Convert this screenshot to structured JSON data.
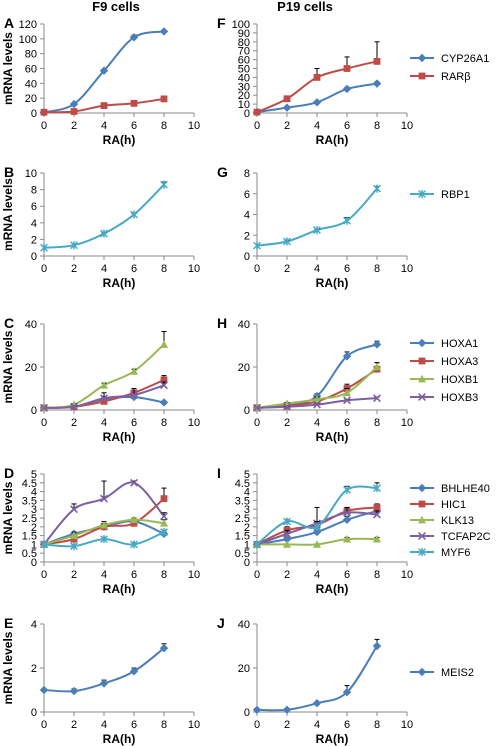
{
  "column_titles": [
    "F9 cells",
    "P19 cells"
  ],
  "colors": {
    "blue": "#4a7ebb",
    "red": "#be4b48",
    "green": "#98b954",
    "purple": "#7d60a0",
    "cyan": "#46aac5"
  },
  "legends": [
    {
      "row": 0,
      "entries": [
        {
          "label": "CYP26A1",
          "color": "#4a7ebb",
          "marker": "diamond"
        },
        {
          "label": "RARβ",
          "color": "#be4b48",
          "marker": "square"
        }
      ]
    },
    {
      "row": 1,
      "entries": [
        {
          "label": "RBP1",
          "color": "#46aac5",
          "marker": "star"
        }
      ]
    },
    {
      "row": 2,
      "entries": [
        {
          "label": "HOXA1",
          "color": "#4a7ebb",
          "marker": "diamond"
        },
        {
          "label": "HOXA3",
          "color": "#be4b48",
          "marker": "square"
        },
        {
          "label": "HOXB1",
          "color": "#98b954",
          "marker": "triangle"
        },
        {
          "label": "HOXB3",
          "color": "#7d60a0",
          "marker": "x"
        }
      ]
    },
    {
      "row": 3,
      "entries": [
        {
          "label": "BHLHE40",
          "color": "#4a7ebb",
          "marker": "diamond"
        },
        {
          "label": "HIC1",
          "color": "#be4b48",
          "marker": "square"
        },
        {
          "label": "KLK13",
          "color": "#98b954",
          "marker": "triangle"
        },
        {
          "label": "TCFAP2C",
          "color": "#7d60a0",
          "marker": "x"
        },
        {
          "label": "MYF6",
          "color": "#46aac5",
          "marker": "star"
        }
      ]
    },
    {
      "row": 4,
      "entries": [
        {
          "label": "MEIS2",
          "color": "#4a7ebb",
          "marker": "diamond"
        }
      ]
    }
  ],
  "chart_data": [
    {
      "panel": "A",
      "type": "line",
      "xlabel": "RA(h)",
      "ylabel": "mRNA levels",
      "xlim": [
        0,
        10
      ],
      "xticks": [
        0,
        2,
        4,
        6,
        8,
        10
      ],
      "ylim": [
        0,
        120
      ],
      "yticks": [
        0,
        20,
        40,
        60,
        80,
        100,
        120
      ],
      "series": [
        {
          "name": "CYP26A1",
          "color": "#4a7ebb",
          "marker": "diamond",
          "x": [
            0,
            2,
            4,
            6,
            8
          ],
          "y": [
            1,
            12,
            57,
            102,
            110
          ],
          "err": [
            0,
            1,
            1,
            3,
            1
          ]
        },
        {
          "name": "RARβ",
          "color": "#be4b48",
          "marker": "square",
          "x": [
            0,
            2,
            4,
            6,
            8
          ],
          "y": [
            1,
            2,
            10,
            13,
            19
          ],
          "err": [
            0,
            0,
            1,
            2,
            3
          ]
        }
      ]
    },
    {
      "panel": "F",
      "type": "line",
      "xlabel": "RA(h)",
      "ylabel": "",
      "xlim": [
        0,
        10
      ],
      "xticks": [
        0,
        2,
        4,
        6,
        8,
        10
      ],
      "ylim": [
        0,
        100
      ],
      "yticks": [
        0,
        10,
        20,
        30,
        40,
        50,
        60,
        70,
        80,
        90,
        100
      ],
      "series": [
        {
          "name": "CYP26A1",
          "color": "#4a7ebb",
          "marker": "diamond",
          "x": [
            0,
            2,
            4,
            6,
            8
          ],
          "y": [
            1,
            6,
            12,
            27,
            33
          ],
          "err": [
            0,
            1,
            1,
            2,
            2
          ]
        },
        {
          "name": "RARβ",
          "color": "#be4b48",
          "marker": "square",
          "x": [
            0,
            2,
            4,
            6,
            8
          ],
          "y": [
            1,
            16,
            40,
            50,
            58
          ],
          "err": [
            0,
            2,
            10,
            13,
            22
          ]
        }
      ]
    },
    {
      "panel": "B",
      "type": "line",
      "xlabel": "RA(h)",
      "ylabel": "mRNA levels",
      "xlim": [
        0,
        10
      ],
      "xticks": [
        0,
        2,
        4,
        6,
        8,
        10
      ],
      "ylim": [
        0,
        10
      ],
      "yticks": [
        0,
        2,
        4,
        6,
        8,
        10
      ],
      "series": [
        {
          "name": "RBP1",
          "color": "#46aac5",
          "marker": "star",
          "x": [
            0,
            2,
            4,
            6,
            8
          ],
          "y": [
            1,
            1.3,
            2.7,
            5,
            8.6
          ],
          "err": [
            0,
            0,
            0.1,
            0.1,
            0.3
          ]
        }
      ]
    },
    {
      "panel": "G",
      "type": "line",
      "xlabel": "RA(h)",
      "ylabel": "",
      "xlim": [
        0,
        10
      ],
      "xticks": [
        0,
        2,
        4,
        6,
        8,
        10
      ],
      "ylim": [
        0,
        8
      ],
      "yticks": [
        0,
        2,
        4,
        6,
        8
      ],
      "series": [
        {
          "name": "RBP1",
          "color": "#46aac5",
          "marker": "star",
          "x": [
            0,
            2,
            4,
            6,
            8
          ],
          "y": [
            1,
            1.4,
            2.5,
            3.4,
            6.5
          ],
          "err": [
            0,
            0.1,
            0.1,
            0.3,
            0.2
          ]
        }
      ]
    },
    {
      "panel": "C",
      "type": "line",
      "xlabel": "RA(h)",
      "ylabel": "mRNA levels",
      "xlim": [
        0,
        10
      ],
      "xticks": [
        0,
        2,
        4,
        6,
        8,
        10
      ],
      "ylim": [
        0,
        40
      ],
      "yticks": [
        0,
        20,
        40
      ],
      "series": [
        {
          "name": "HOXA1",
          "color": "#4a7ebb",
          "marker": "diamond",
          "x": [
            0,
            2,
            4,
            6,
            8
          ],
          "y": [
            1,
            1.5,
            5,
            6,
            3.5
          ],
          "err": [
            0,
            0.5,
            1,
            1,
            0.5
          ]
        },
        {
          "name": "HOXA3",
          "color": "#be4b48",
          "marker": "square",
          "x": [
            0,
            2,
            4,
            6,
            8
          ],
          "y": [
            1,
            1.5,
            4,
            8,
            14
          ],
          "err": [
            0,
            0.5,
            1,
            2,
            2
          ]
        },
        {
          "name": "HOXB1",
          "color": "#98b954",
          "marker": "triangle",
          "x": [
            0,
            2,
            4,
            6,
            8
          ],
          "y": [
            1,
            2.5,
            11.5,
            18,
            30.5
          ],
          "err": [
            0,
            0.5,
            1,
            1,
            6
          ]
        },
        {
          "name": "HOXB3",
          "color": "#7d60a0",
          "marker": "x",
          "x": [
            0,
            2,
            4,
            6,
            8
          ],
          "y": [
            1,
            1.5,
            5.5,
            7,
            11.5
          ],
          "err": [
            0,
            0.5,
            2.5,
            3,
            1.5
          ]
        }
      ]
    },
    {
      "panel": "H",
      "type": "line",
      "xlabel": "RA(h)",
      "ylabel": "",
      "xlim": [
        0,
        10
      ],
      "xticks": [
        0,
        2,
        4,
        6,
        8,
        10
      ],
      "ylim": [
        0,
        40
      ],
      "yticks": [
        0,
        20,
        40
      ],
      "series": [
        {
          "name": "HOXA1",
          "color": "#4a7ebb",
          "marker": "diamond",
          "x": [
            0,
            2,
            4,
            6,
            8
          ],
          "y": [
            1,
            2,
            6.5,
            25,
            30.5
          ],
          "err": [
            0,
            0.5,
            1,
            2,
            1.5
          ]
        },
        {
          "name": "HOXA3",
          "color": "#be4b48",
          "marker": "square",
          "x": [
            0,
            2,
            4,
            6,
            8
          ],
          "y": [
            1,
            2,
            4,
            10,
            19
          ],
          "err": [
            0,
            0.5,
            0.5,
            2,
            3
          ]
        },
        {
          "name": "HOXB1",
          "color": "#98b954",
          "marker": "triangle",
          "x": [
            0,
            2,
            4,
            6,
            8
          ],
          "y": [
            1,
            3,
            5,
            8,
            20
          ],
          "err": [
            0,
            0.5,
            1,
            2,
            2
          ]
        },
        {
          "name": "HOXB3",
          "color": "#7d60a0",
          "marker": "x",
          "x": [
            0,
            2,
            4,
            6,
            8
          ],
          "y": [
            1,
            1.5,
            2.5,
            4.5,
            5.5
          ],
          "err": [
            0,
            0.3,
            0.5,
            0.5,
            0.5
          ]
        }
      ]
    },
    {
      "panel": "D",
      "type": "line",
      "xlabel": "RA(h)",
      "ylabel": "mRNA levels",
      "xlim": [
        0,
        10
      ],
      "xticks": [
        0,
        2,
        4,
        6,
        8,
        10
      ],
      "ylim": [
        0,
        5
      ],
      "yticks": [
        0,
        0.5,
        1,
        1.5,
        2,
        2.5,
        3,
        3.5,
        4,
        4.5,
        5
      ],
      "series": [
        {
          "name": "BHLHE40",
          "color": "#4a7ebb",
          "marker": "diamond",
          "x": [
            0,
            2,
            4,
            6,
            8
          ],
          "y": [
            1,
            1.6,
            2,
            2.3,
            1.6
          ],
          "err": [
            0,
            0.1,
            0.1,
            0.1,
            0.1
          ]
        },
        {
          "name": "HIC1",
          "color": "#be4b48",
          "marker": "square",
          "x": [
            0,
            2,
            4,
            6,
            8
          ],
          "y": [
            1,
            1.3,
            2,
            2.2,
            3.6
          ],
          "err": [
            0,
            0.1,
            0.2,
            0.3,
            0.6
          ]
        },
        {
          "name": "KLK13",
          "color": "#98b954",
          "marker": "triangle",
          "x": [
            0,
            2,
            4,
            6,
            8
          ],
          "y": [
            1,
            1.5,
            2.1,
            2.4,
            2.2
          ],
          "err": [
            0,
            0.2,
            0.2,
            0.1,
            0.2
          ]
        },
        {
          "name": "TCFAP2C",
          "color": "#7d60a0",
          "marker": "x",
          "x": [
            0,
            2,
            4,
            6,
            8
          ],
          "y": [
            1,
            3,
            3.6,
            4.5,
            2.6
          ],
          "err": [
            0,
            0.3,
            1,
            0.1,
            0.2
          ]
        },
        {
          "name": "MYF6",
          "color": "#46aac5",
          "marker": "star",
          "x": [
            0,
            2,
            4,
            6,
            8
          ],
          "y": [
            1,
            0.9,
            1.3,
            1,
            1.7
          ],
          "err": [
            0,
            0.1,
            0.1,
            0.1,
            0.1
          ]
        }
      ]
    },
    {
      "panel": "I",
      "type": "line",
      "xlabel": "RA(h)",
      "ylabel": "",
      "xlim": [
        0,
        10
      ],
      "xticks": [
        0,
        2,
        4,
        6,
        8,
        10
      ],
      "ylim": [
        0,
        5
      ],
      "yticks": [
        0,
        0.5,
        1,
        1.5,
        2,
        2.5,
        3,
        3.5,
        4,
        4.5,
        5
      ],
      "series": [
        {
          "name": "BHLHE40",
          "color": "#4a7ebb",
          "marker": "diamond",
          "x": [
            0,
            2,
            4,
            6,
            8
          ],
          "y": [
            1,
            1.3,
            1.7,
            2.4,
            2.9
          ],
          "err": [
            0,
            0.1,
            0.1,
            0.2,
            0.2
          ]
        },
        {
          "name": "HIC1",
          "color": "#be4b48",
          "marker": "square",
          "x": [
            0,
            2,
            4,
            6,
            8
          ],
          "y": [
            1,
            1.8,
            2.1,
            2.9,
            3.1
          ],
          "err": [
            0,
            0.2,
            0.2,
            0.2,
            0.2
          ]
        },
        {
          "name": "KLK13",
          "color": "#98b954",
          "marker": "triangle",
          "x": [
            0,
            2,
            4,
            6,
            8
          ],
          "y": [
            1,
            1,
            1,
            1.3,
            1.3
          ],
          "err": [
            0,
            0,
            0,
            0.1,
            0.1
          ]
        },
        {
          "name": "TCFAP2C",
          "color": "#7d60a0",
          "marker": "x",
          "x": [
            0,
            2,
            4,
            6,
            8
          ],
          "y": [
            1,
            1.6,
            2.2,
            2.8,
            2.7
          ],
          "err": [
            0,
            0.2,
            0.9,
            0.3,
            0.2
          ]
        },
        {
          "name": "MYF6",
          "color": "#46aac5",
          "marker": "star",
          "x": [
            0,
            2,
            4,
            6,
            8
          ],
          "y": [
            1,
            2.3,
            2,
            4.1,
            4.2
          ],
          "err": [
            0,
            0.1,
            0.3,
            0.2,
            0.3
          ]
        }
      ]
    },
    {
      "panel": "E",
      "type": "line",
      "xlabel": "RA(h)",
      "ylabel": "mRNA levels",
      "xlim": [
        0,
        10
      ],
      "xticks": [
        0,
        2,
        4,
        6,
        8,
        10
      ],
      "ylim": [
        0,
        4
      ],
      "yticks": [
        0,
        2,
        4
      ],
      "series": [
        {
          "name": "MEIS2",
          "color": "#4a7ebb",
          "marker": "diamond",
          "x": [
            0,
            2,
            4,
            6,
            8
          ],
          "y": [
            1,
            0.95,
            1.3,
            1.85,
            2.9
          ],
          "err": [
            0,
            0.1,
            0.15,
            0.15,
            0.2
          ]
        }
      ]
    },
    {
      "panel": "J",
      "type": "line",
      "xlabel": "RA(h)",
      "ylabel": "",
      "xlim": [
        0,
        10
      ],
      "xticks": [
        0,
        2,
        4,
        6,
        8,
        10
      ],
      "ylim": [
        0,
        40
      ],
      "yticks": [
        0,
        20,
        40
      ],
      "series": [
        {
          "name": "MEIS2",
          "color": "#4a7ebb",
          "marker": "diamond",
          "x": [
            0,
            2,
            4,
            6,
            8
          ],
          "y": [
            1,
            1,
            4,
            9,
            30
          ],
          "err": [
            0,
            0.3,
            0.5,
            3,
            3
          ]
        }
      ]
    }
  ]
}
